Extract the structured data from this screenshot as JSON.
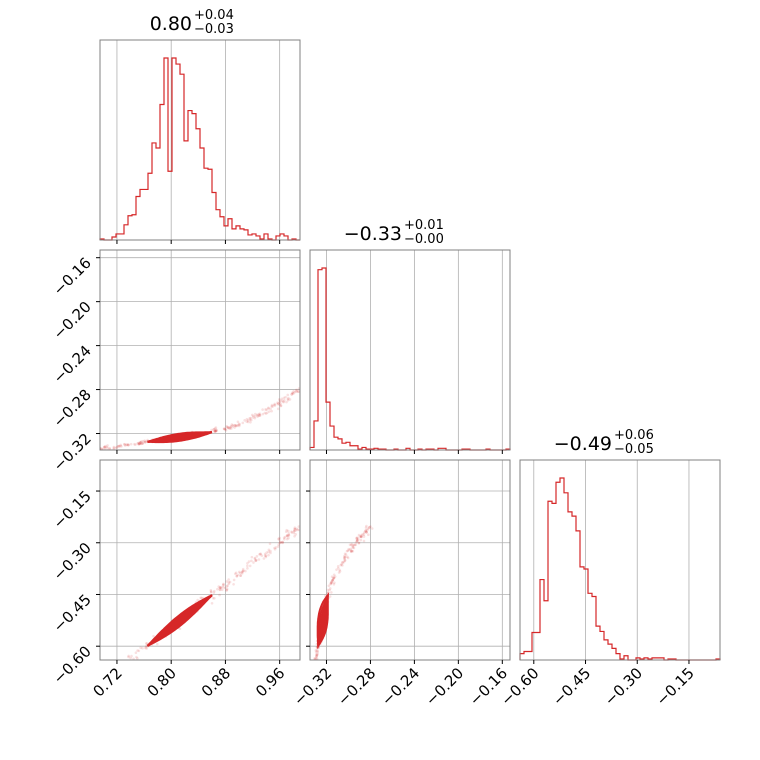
{
  "chart_data": {
    "type": "corner",
    "color": "#d62728",
    "panels_grid": 3,
    "diag_titles": [
      {
        "value": "0.80",
        "plus": "+0.04",
        "minus": "−0.03"
      },
      {
        "value": "−0.33",
        "plus": "+0.01",
        "minus": "−0.00"
      },
      {
        "value": "−0.49",
        "plus": "+0.06",
        "minus": "−0.05"
      }
    ],
    "params": [
      {
        "range": [
          0.695,
          0.99
        ],
        "ticks": [
          0.72,
          0.8,
          0.88,
          0.96
        ],
        "tick_labels": [
          "0.72",
          "0.80",
          "0.88",
          "0.96"
        ]
      },
      {
        "range": [
          -0.335,
          -0.153
        ],
        "ticks": [
          -0.32,
          -0.28,
          -0.24,
          -0.2,
          -0.16
        ],
        "tick_labels": [
          "−0.32",
          "−0.28",
          "−0.24",
          "−0.20",
          "−0.16"
        ]
      },
      {
        "range": [
          -0.64,
          -0.06
        ],
        "ticks": [
          -0.6,
          -0.45,
          -0.3,
          -0.15
        ],
        "tick_labels": [
          "−0.60",
          "−0.45",
          "−0.30",
          "−0.15"
        ]
      }
    ],
    "hist": [
      {
        "counts": [
          1,
          0,
          0,
          3,
          6,
          6,
          15,
          24,
          25,
          43,
          50,
          50,
          66,
          96,
          91,
          134,
          180,
          68,
          180,
          174,
          164,
          98,
          128,
          125,
          110,
          91,
          71,
          70,
          47,
          30,
          23,
          14,
          21,
          11,
          14,
          11,
          10,
          5,
          6,
          4,
          1,
          6,
          1,
          0,
          4,
          6,
          4,
          0,
          1,
          0
        ]
      },
      {
        "counts": [
          3,
          34,
          211,
          213,
          56,
          28,
          15,
          13,
          8,
          9,
          5,
          5,
          1,
          3,
          1,
          1,
          2,
          1,
          1,
          0,
          0,
          1,
          0,
          0,
          2,
          0,
          0,
          1,
          0,
          1,
          1,
          0,
          2,
          2,
          0,
          0,
          0,
          0,
          1,
          1,
          0,
          0,
          0,
          0,
          1,
          0,
          0,
          0,
          0,
          1
        ]
      },
      {
        "counts": [
          6,
          8,
          8,
          26,
          26,
          76,
          56,
          150,
          148,
          168,
          172,
          158,
          140,
          136,
          122,
          88,
          86,
          63,
          60,
          32,
          27,
          19,
          15,
          11,
          6,
          1,
          4,
          0,
          0,
          2,
          1,
          2,
          1,
          2,
          2,
          2,
          0,
          1,
          1,
          0,
          0,
          0,
          0,
          0,
          0,
          0,
          0,
          0,
          0,
          1
        ]
      }
    ]
  }
}
